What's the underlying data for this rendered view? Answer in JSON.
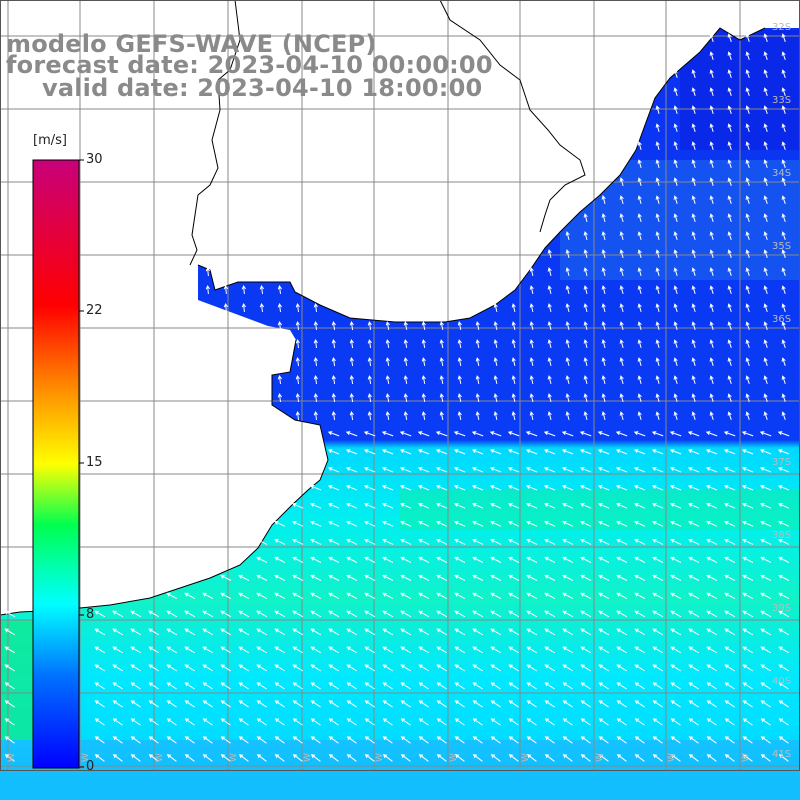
{
  "title": {
    "model": "modelo GEFS-WAVE (NCEP)",
    "forecast": "forecast date: 2023-04-10 00:00:00",
    "valid": "valid date: 2023-04-10 18:00:00"
  },
  "colorbar": {
    "unit": "[m/s]",
    "ticks": [
      {
        "label": "30",
        "value": 30
      },
      {
        "label": "22",
        "value": 22
      },
      {
        "label": "15",
        "value": 15
      },
      {
        "label": "8",
        "value": 8
      },
      {
        "label": "0",
        "value": 0
      }
    ],
    "gradient_colors": [
      "#0000ff",
      "#00a0ff",
      "#00ffff",
      "#00ff60",
      "#00ff00",
      "#ffff00",
      "#ffa000",
      "#ff4000",
      "#ff0000",
      "#cc0080"
    ]
  },
  "map": {
    "land_color": "#ffffff",
    "coast_color": "#000000",
    "grid_color": "#888888",
    "arrow_color": "#ffffff",
    "right_lat_labels": [
      "32S",
      "33S",
      "34S",
      "35S",
      "36S",
      "37S",
      "38S",
      "39S",
      "40S",
      "41S"
    ],
    "bottom_lon_labels": [
      "W",
      "W",
      "W",
      "W",
      "W",
      "W",
      "W",
      "W",
      "W",
      "W",
      "W"
    ],
    "wind_direction": "mostly from east/southeast"
  }
}
